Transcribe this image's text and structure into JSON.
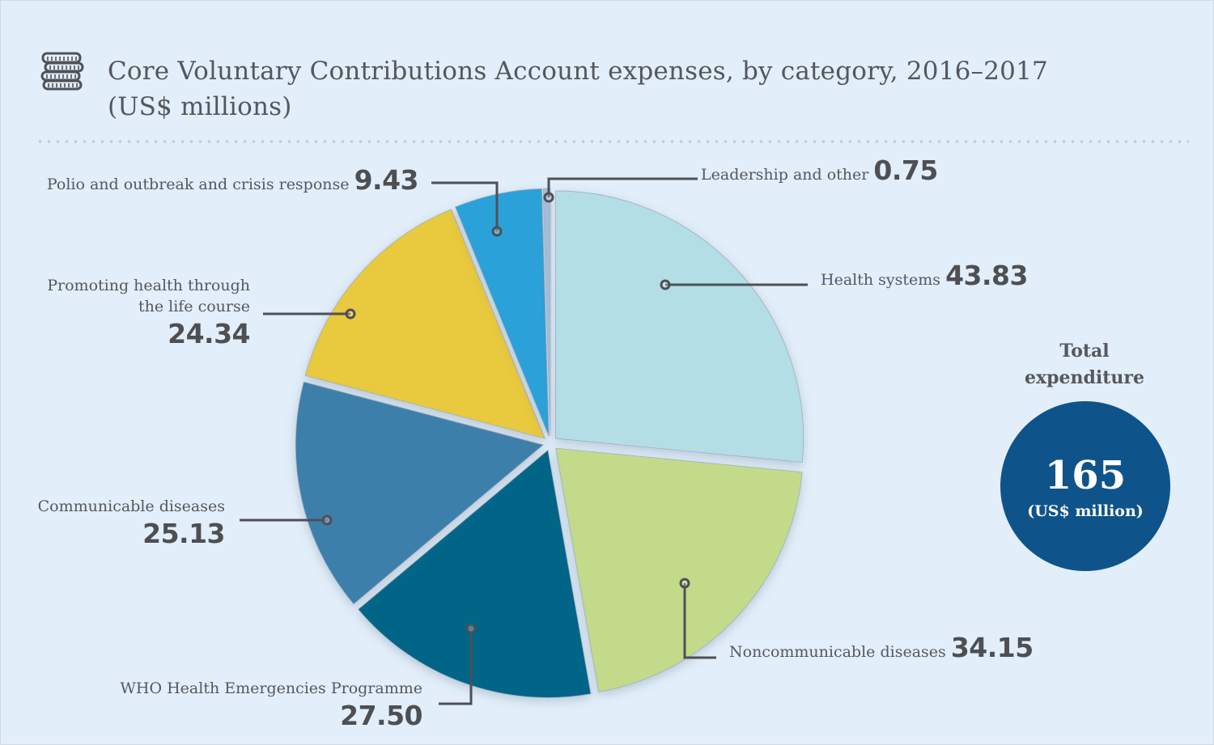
{
  "header": {
    "icon": "coins-stack-icon",
    "title_line1": "Core Voluntary Contributions Account expenses, by category, 2016–2017",
    "title_line2": "(US$ millions)"
  },
  "total": {
    "label_line1": "Total",
    "label_line2": "expenditure",
    "value": "165",
    "unit": "(US$ million)",
    "color": "#0e548a"
  },
  "chart_data": {
    "type": "pie",
    "title": "Core Voluntary Contributions Account expenses, by category, 2016–2017 (US$ millions)",
    "start": "top",
    "direction": "clockwise",
    "exploded": true,
    "total": 165,
    "slices": [
      {
        "label": "Health systems",
        "value": 43.83,
        "display": "43.83",
        "color": "#b3dee6"
      },
      {
        "label": "Noncommunicable diseases",
        "value": 34.15,
        "display": "34.15",
        "color": "#c3da8a"
      },
      {
        "label": "WHO Health Emergencies Programme",
        "value": 27.5,
        "display": "27.50",
        "color": "#016587"
      },
      {
        "label": "Communicable diseases",
        "value": 25.13,
        "display": "25.13",
        "color": "#3e7fab"
      },
      {
        "label": "Promoting health through the life course",
        "label_line1": "Promoting health through",
        "label_line2": "the life course",
        "value": 24.34,
        "display": "24.34",
        "color": "#e9c93c"
      },
      {
        "label": "Polio and outbreak and crisis response",
        "value": 9.43,
        "display": "9.43",
        "color": "#2ba1d9"
      },
      {
        "label": "Leadership and other",
        "value": 0.75,
        "display": "0.75",
        "color": "#a4bcd6"
      }
    ]
  }
}
